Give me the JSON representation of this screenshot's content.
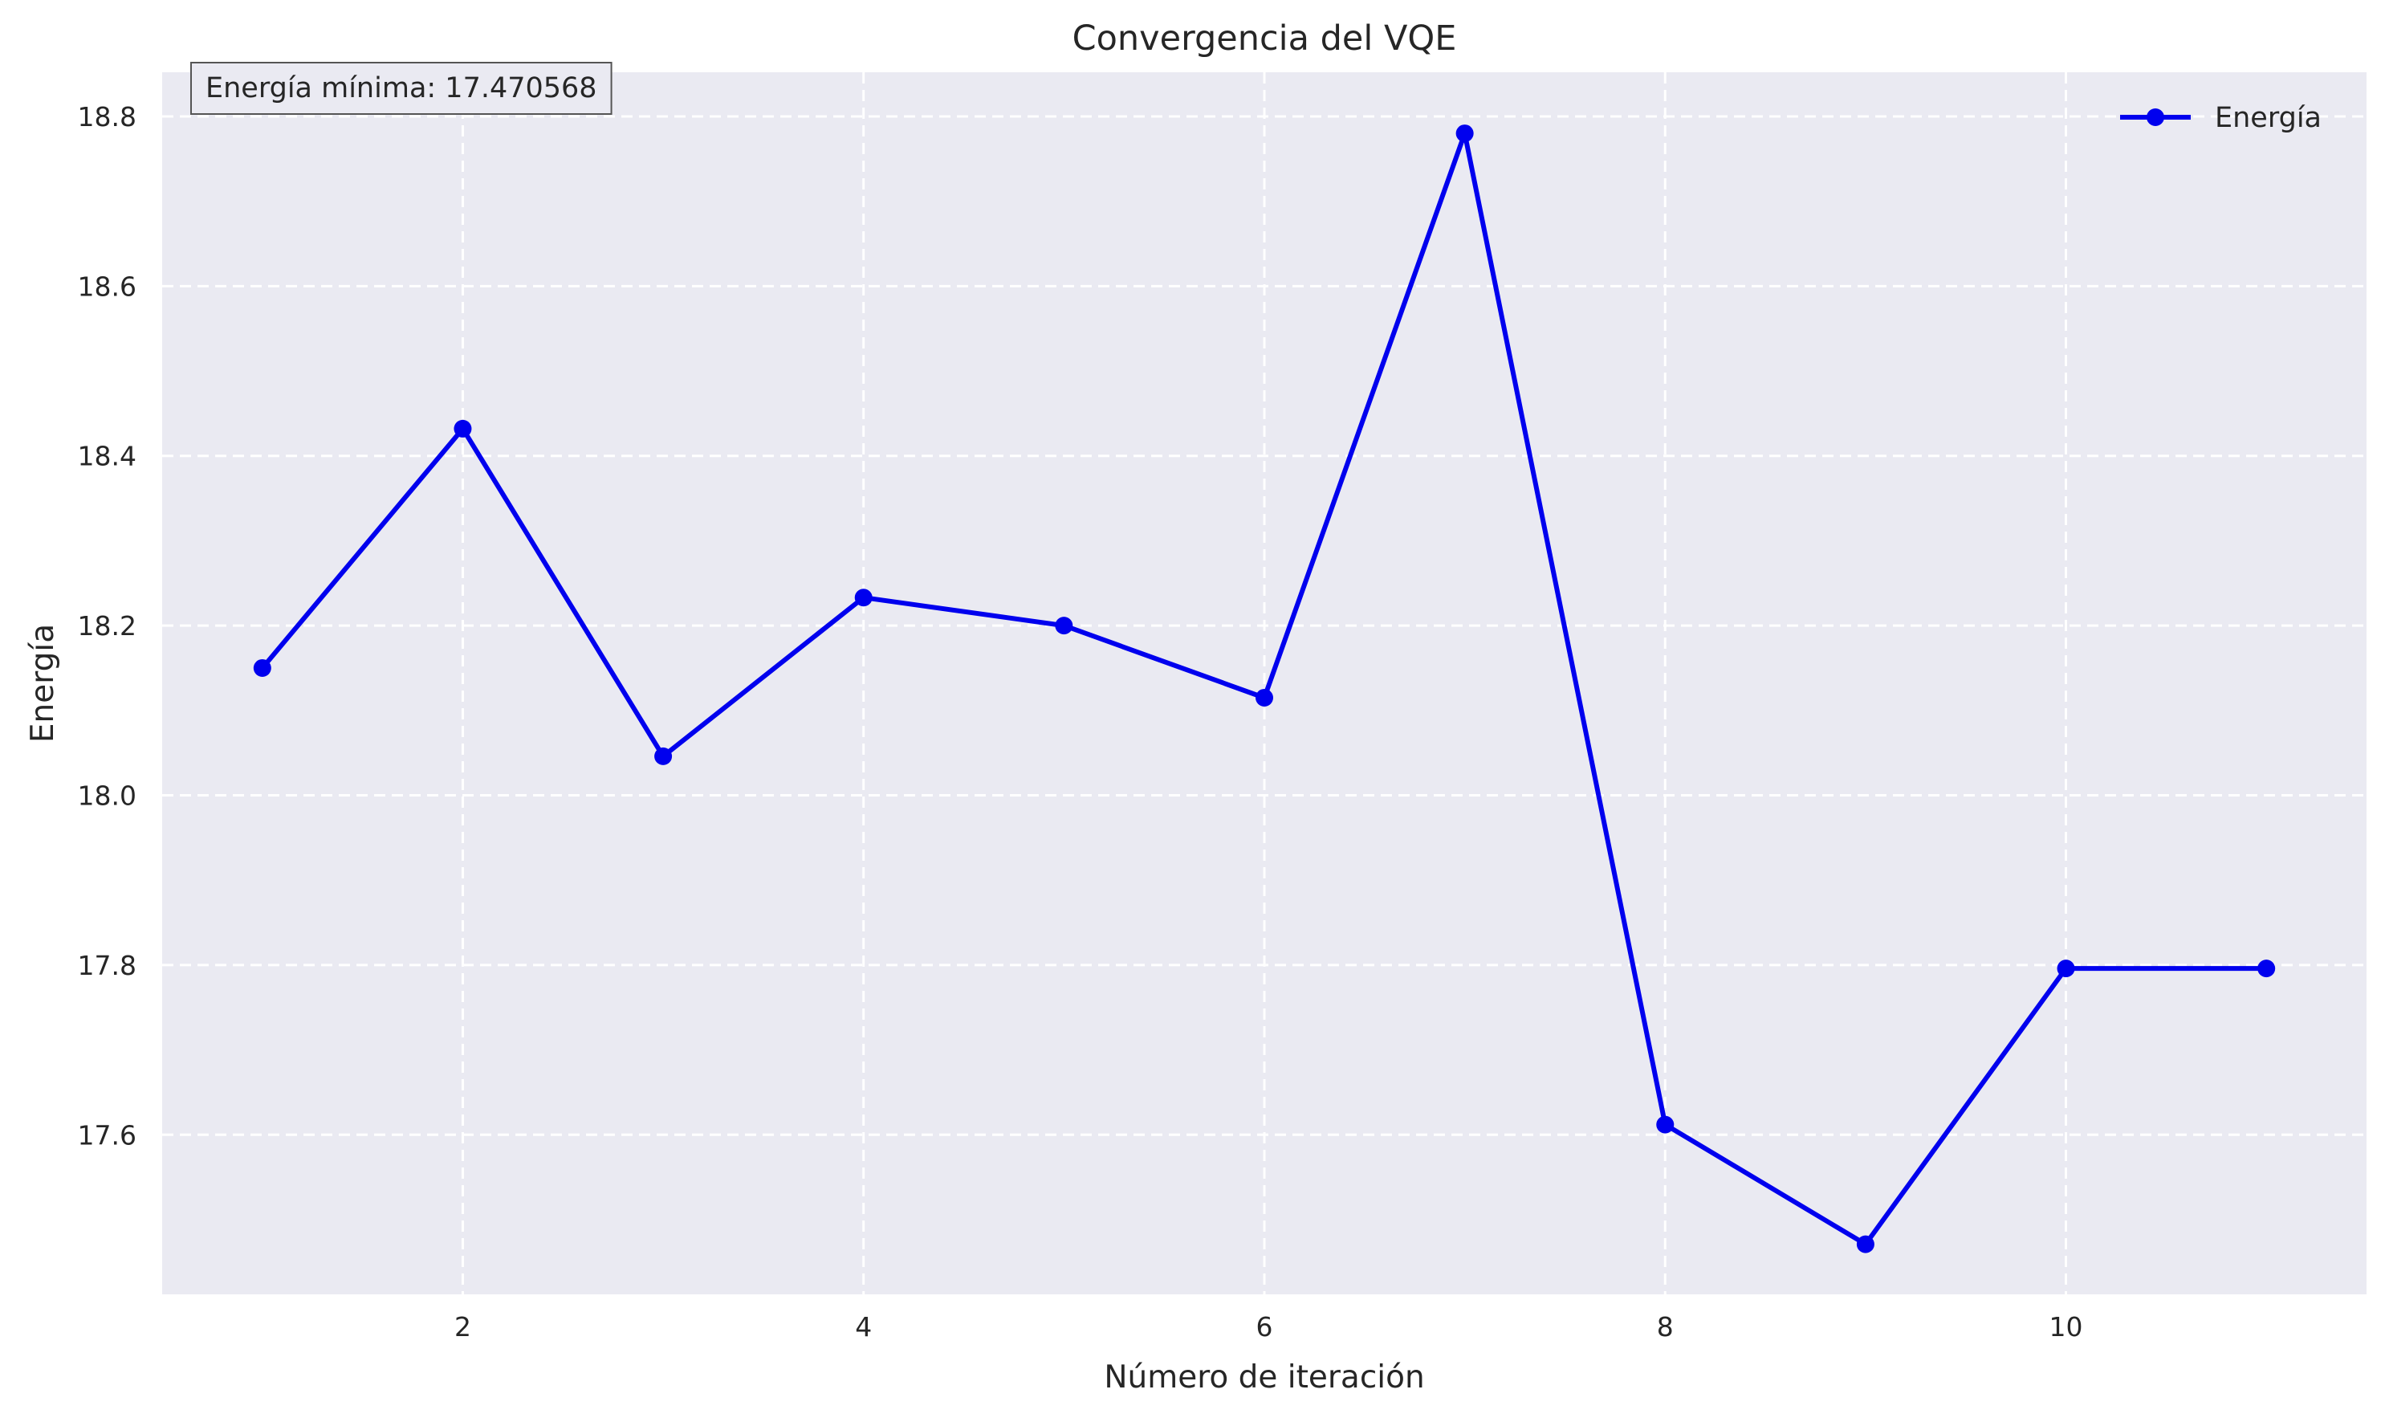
{
  "colors": {
    "plot_background": "#eaeaf2",
    "line": "#0000ee",
    "grid": "#ffffff",
    "text": "#262626",
    "annotation_border": "#555555"
  },
  "chart_data": {
    "type": "line",
    "title": "Convergencia del VQE",
    "xlabel": "Número de iteración",
    "ylabel": "Energía",
    "x": [
      1,
      2,
      3,
      4,
      5,
      6,
      7,
      8,
      9,
      10,
      11
    ],
    "series": [
      {
        "name": "Energía",
        "values": [
          18.15,
          18.432,
          18.046,
          18.233,
          18.2,
          18.115,
          18.78,
          17.612,
          17.471,
          17.796,
          17.796
        ]
      }
    ],
    "xlim": [
      0.5,
      11.5
    ],
    "ylim": [
      17.412,
      18.852
    ],
    "xticks": [
      2,
      4,
      6,
      8,
      10
    ],
    "xtick_labels": [
      "2",
      "4",
      "6",
      "8",
      "10"
    ],
    "yticks": [
      17.6,
      17.8,
      18.0,
      18.2,
      18.4,
      18.6,
      18.8
    ],
    "ytick_labels": [
      "17.6",
      "17.8",
      "18.0",
      "18.2",
      "18.4",
      "18.6",
      "18.8"
    ],
    "grid": true,
    "legend_position": "top-right",
    "annotation": "Energía mínima: 17.470568"
  }
}
